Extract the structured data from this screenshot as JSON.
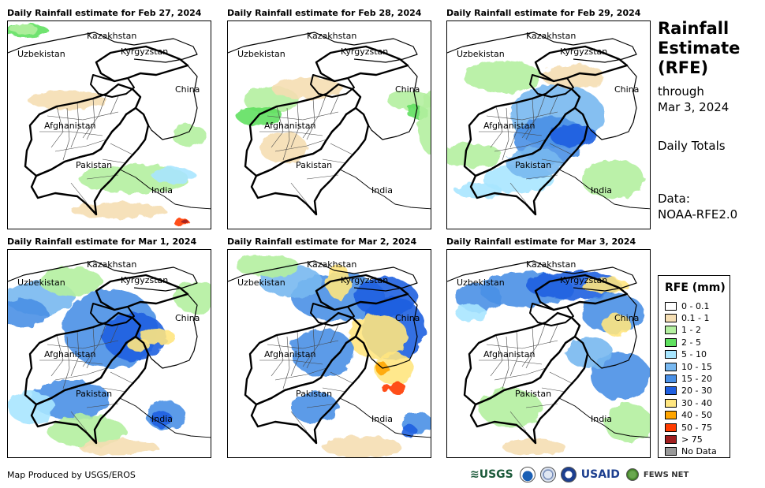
{
  "panels": [
    {
      "title": "Daily Rainfall estimate for Feb 27, 2024",
      "date": "Feb 27, 2024",
      "intensity": 1
    },
    {
      "title": "Daily Rainfall estimate for Feb 28, 2024",
      "date": "Feb 28, 2024",
      "intensity": 0
    },
    {
      "title": "Daily Rainfall estimate for Feb 29, 2024",
      "date": "Feb 29, 2024",
      "intensity": 2
    },
    {
      "title": "Daily Rainfall estimate for Mar 1, 2024",
      "date": "Mar 1, 2024",
      "intensity": 3
    },
    {
      "title": "Daily Rainfall estimate for Mar 2, 2024",
      "date": "Mar 2, 2024",
      "intensity": 4
    },
    {
      "title": "Daily Rainfall estimate for Mar 3, 2024",
      "date": "Mar 3, 2024",
      "intensity": 3
    }
  ],
  "map_labels": {
    "kazakhstan": "Kazakhstan",
    "uzbekistan": "Uzbekistan",
    "kyrgyzstan": "Kyrgyzstan",
    "china": "China",
    "afghanistan": "Afghanistan",
    "pakistan": "Pakistan",
    "india": "India"
  },
  "sidebar": {
    "title_line1": "Rainfall",
    "title_line2": "Estimate",
    "title_line3": "(RFE)",
    "through": "through",
    "through_date": "Mar 3, 2024",
    "totals": "Daily Totals",
    "data_label": "Data:",
    "data_source": "NOAA-RFE2.0"
  },
  "legend": {
    "title": "RFE (mm)",
    "items": [
      {
        "label": "0 - 0.1",
        "color": "#ffffff"
      },
      {
        "label": "0.1 - 1",
        "color": "#f5deb3"
      },
      {
        "label": "1 - 2",
        "color": "#b4f0a0"
      },
      {
        "label": "2 - 5",
        "color": "#5fe05f"
      },
      {
        "label": "5 - 10",
        "color": "#a8e6ff"
      },
      {
        "label": "10 - 15",
        "color": "#78b8f0"
      },
      {
        "label": "15 - 20",
        "color": "#4a90e6"
      },
      {
        "label": "20 - 30",
        "color": "#1f5fe0"
      },
      {
        "label": "30 - 40",
        "color": "#ffe680"
      },
      {
        "label": "40 - 50",
        "color": "#ffa500"
      },
      {
        "label": "50 - 75",
        "color": "#ff3c00"
      },
      {
        "label": "> 75",
        "color": "#a01e1e"
      },
      {
        "label": "No Data",
        "color": "#999999"
      }
    ]
  },
  "footer": {
    "credit": "Map Produced by USGS/EROS",
    "usgs": "≋USGS",
    "usaid": "USAID",
    "fews": "FEWS NET"
  }
}
